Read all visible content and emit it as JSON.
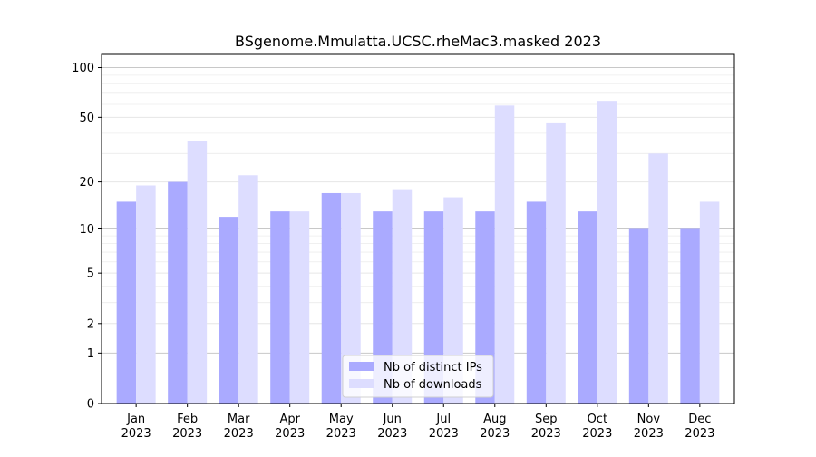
{
  "chart_data": {
    "type": "bar",
    "title": "BSgenome.Mmulatta.UCSC.rheMac3.masked 2023",
    "xlabel": "",
    "ylabel": "",
    "scale": "log(1+y)",
    "grid": true,
    "legend_position": "bottom-center",
    "categories": [
      [
        "Jan",
        "2023"
      ],
      [
        "Feb",
        "2023"
      ],
      [
        "Mar",
        "2023"
      ],
      [
        "Apr",
        "2023"
      ],
      [
        "May",
        "2023"
      ],
      [
        "Jun",
        "2023"
      ],
      [
        "Jul",
        "2023"
      ],
      [
        "Aug",
        "2023"
      ],
      [
        "Sep",
        "2023"
      ],
      [
        "Oct",
        "2023"
      ],
      [
        "Nov",
        "2023"
      ],
      [
        "Dec",
        "2023"
      ]
    ],
    "y_ticks": [
      0,
      1,
      2,
      5,
      10,
      20,
      50,
      100
    ],
    "ylim": [
      0,
      120
    ],
    "series": [
      {
        "name": "Nb of distinct IPs",
        "color": "#aaaaff",
        "values": [
          15,
          20,
          12,
          13,
          17,
          13,
          13,
          13,
          15,
          13,
          10,
          10
        ]
      },
      {
        "name": "Nb of downloads",
        "color": "#ddddff",
        "values": [
          19,
          36,
          22,
          13,
          17,
          18,
          16,
          59,
          46,
          63,
          30,
          15
        ]
      }
    ]
  }
}
